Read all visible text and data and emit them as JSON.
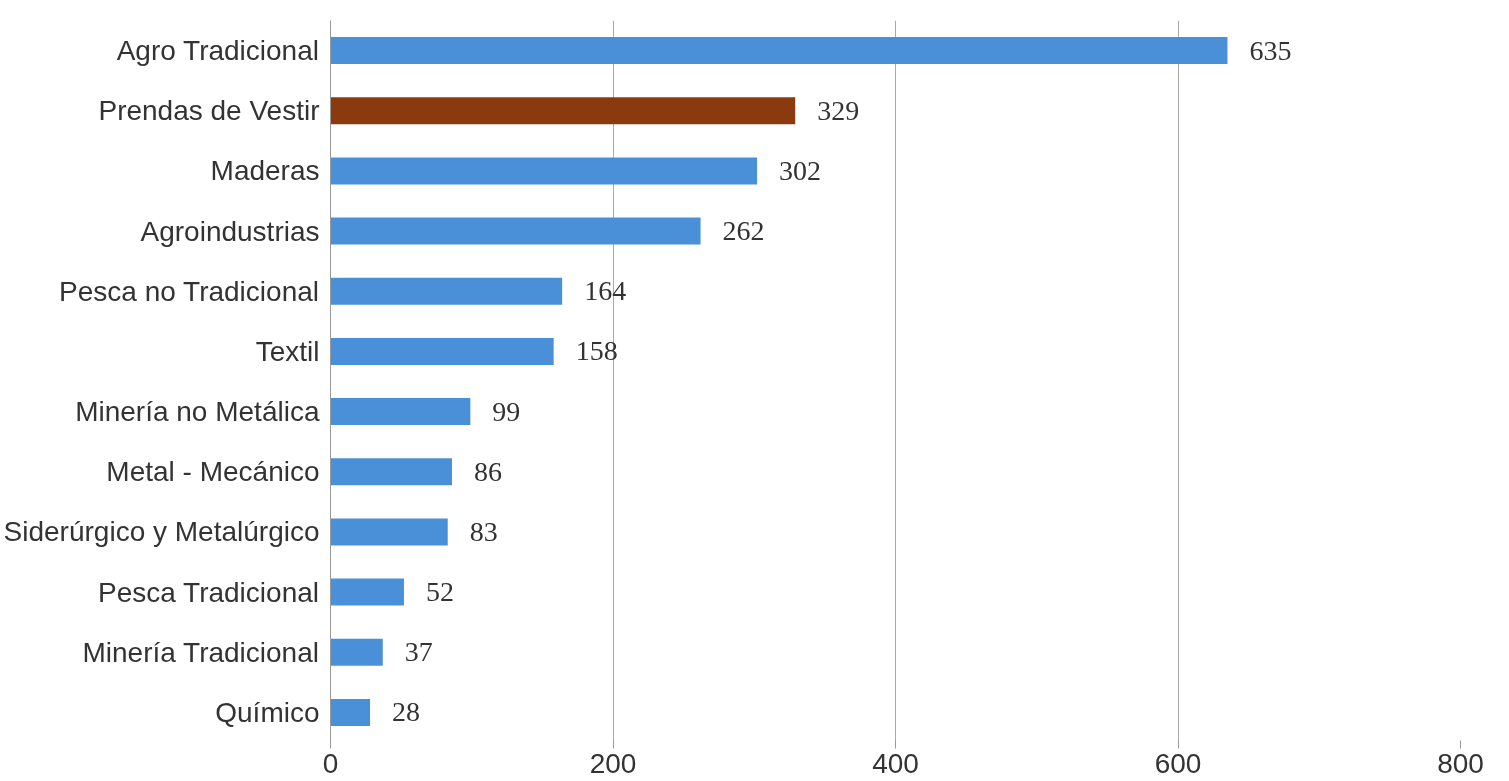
{
  "chart_data": {
    "type": "bar",
    "orientation": "horizontal",
    "categories": [
      "Agro Tradicional",
      "Prendas de Vestir",
      "Maderas",
      "Agroindustrias",
      "Pesca no Tradicional",
      "Textil",
      "Minería no Metálica",
      "Metal - Mecánico",
      "Siderúrgico y Metalúrgico",
      "Pesca Tradicional",
      "Minería Tradicional",
      "Químico"
    ],
    "values": [
      635,
      329,
      302,
      262,
      164,
      158,
      99,
      86,
      83,
      52,
      37,
      28
    ],
    "colors": [
      "#4a90d9",
      "#8b3a0f",
      "#4a90d9",
      "#4a90d9",
      "#4a90d9",
      "#4a90d9",
      "#4a90d9",
      "#4a90d9",
      "#4a90d9",
      "#4a90d9",
      "#4a90d9",
      "#4a90d9"
    ],
    "xlim": [
      0,
      800
    ],
    "xticks": [
      0,
      200,
      400,
      600,
      800
    ],
    "grid": "x",
    "data_labels": true
  }
}
